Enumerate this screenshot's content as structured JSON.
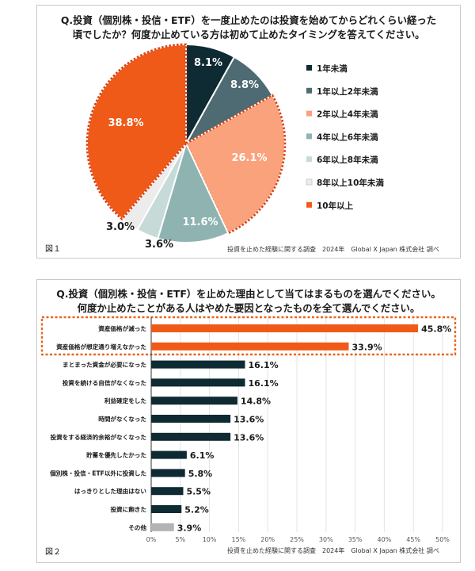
{
  "figure1": {
    "title_lines": [
      "Q.投資（個別株・投信・ETF）を一度止めたのは投資を始めてからどれくらい経った",
      "頃でしたか？何度か止めている方は初めて止めたタイミングを答えてください。"
    ],
    "figure_label": "図１",
    "source": "投資を止めた経験に関する調査　2024年　Global X Japan 株式会社 調べ",
    "chart_data": {
      "type": "pie",
      "start": "12 o'clock, clockwise",
      "slices": [
        {
          "label": "1年未満",
          "value": 8.1,
          "text": "8.1%",
          "color": "#0e2a33",
          "highlight": false
        },
        {
          "label": "1年以上2年未満",
          "value": 8.8,
          "text": "8.8%",
          "color": "#4e6a72",
          "highlight": false
        },
        {
          "label": "2年以上4年未満",
          "value": 26.1,
          "text": "26.1%",
          "color": "#f9a27c",
          "highlight": true
        },
        {
          "label": "4年以上6年未満",
          "value": 11.6,
          "text": "11.6%",
          "color": "#8fb3b1",
          "highlight": false
        },
        {
          "label": "6年以上8年未満",
          "value": 3.6,
          "text": "3.6%",
          "color": "#c6dad8",
          "highlight": false
        },
        {
          "label": "8年以上10年未満",
          "value": 3.0,
          "text": "3.0%",
          "color": "#ececec",
          "highlight": false
        },
        {
          "label": "10年以上",
          "value": 38.8,
          "text": "38.8%",
          "color": "#f05a19",
          "highlight": true
        }
      ]
    }
  },
  "figure2": {
    "title_lines": [
      "Q.投資（個別株・投信・ETF）を止めた理由として当てはまるものを選んでください。",
      "何度か止めたことがある人はやめた要因となったものを全て選んでください。"
    ],
    "figure_label": "図２",
    "source": "投資を止めた経験に関する調査　2024年　Global X Japan 株式会社 調べ",
    "chart_data": {
      "type": "bar",
      "orientation": "horizontal",
      "xlim": [
        0,
        50
      ],
      "ticks": [
        "0%",
        "5%",
        "10%",
        "15%",
        "20%",
        "25%",
        "30%",
        "35%",
        "40%",
        "45%",
        "50%"
      ],
      "tick_values": [
        0,
        5,
        10,
        15,
        20,
        25,
        30,
        35,
        40,
        45,
        50
      ],
      "bars": [
        {
          "label": "資産価格が減った",
          "value": 45.8,
          "text": "45.8%",
          "color": "#f05a19",
          "highlight": true
        },
        {
          "label": "資産価格が想定通り増えなかった",
          "value": 33.9,
          "text": "33.9%",
          "color": "#f05a19",
          "highlight": true
        },
        {
          "label": "まとまった資金が必要になった",
          "value": 16.1,
          "text": "16.1%",
          "color": "#0e2a33",
          "highlight": false
        },
        {
          "label": "投資を続ける自信がなくなった",
          "value": 16.1,
          "text": "16.1%",
          "color": "#0e2a33",
          "highlight": false
        },
        {
          "label": "利益確定をした",
          "value": 14.8,
          "text": "14.8%",
          "color": "#0e2a33",
          "highlight": false
        },
        {
          "label": "時間がなくなった",
          "value": 13.6,
          "text": "13.6%",
          "color": "#0e2a33",
          "highlight": false
        },
        {
          "label": "投資をする経済的余裕がなくなった",
          "value": 13.6,
          "text": "13.6%",
          "color": "#0e2a33",
          "highlight": false
        },
        {
          "label": "貯蓄を優先したかった",
          "value": 6.1,
          "text": "6.1%",
          "color": "#0e2a33",
          "highlight": false
        },
        {
          "label": "個別株・投信・ETF以外に投資した",
          "value": 5.8,
          "text": "5.8%",
          "color": "#0e2a33",
          "highlight": false
        },
        {
          "label": "はっきりとした理由はない",
          "value": 5.5,
          "text": "5.5%",
          "color": "#0e2a33",
          "highlight": false
        },
        {
          "label": "投資に飽きた",
          "value": 5.2,
          "text": "5.2%",
          "color": "#0e2a33",
          "highlight": false
        },
        {
          "label": "その他",
          "value": 3.9,
          "text": "3.9%",
          "color": "#b3b3b3",
          "highlight": false
        }
      ]
    }
  }
}
